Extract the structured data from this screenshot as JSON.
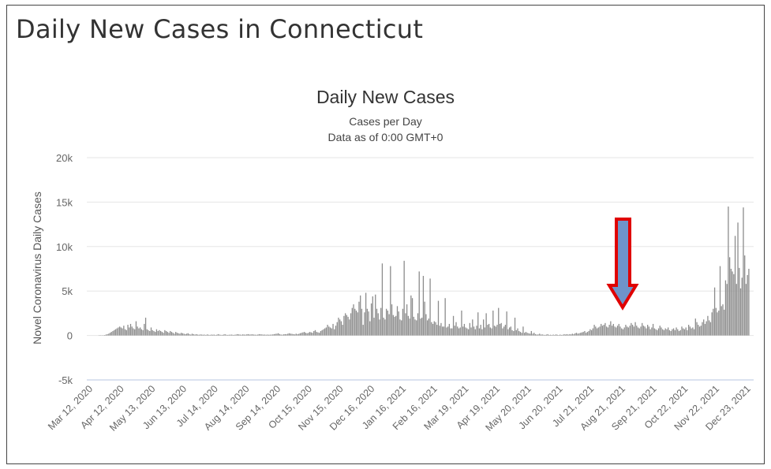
{
  "page": {
    "title": "Daily New Cases in Connecticut"
  },
  "chart_data": {
    "type": "bar",
    "title": "Daily New Cases",
    "subtitle": "Cases per Day",
    "subtitle2": "Data as of 0:00 GMT+0",
    "ylabel": "Novel Coronavirus Daily Cases",
    "xlabel": "",
    "ylim": [
      -5000,
      20000
    ],
    "y_ticks": [
      {
        "value": 20000,
        "label": "20k"
      },
      {
        "value": 15000,
        "label": "15k"
      },
      {
        "value": 10000,
        "label": "10k"
      },
      {
        "value": 5000,
        "label": "5k"
      },
      {
        "value": 0,
        "label": "0"
      },
      {
        "value": -5000,
        "label": "-5k"
      }
    ],
    "x_tick_labels": [
      "Mar 12, 2020",
      "Apr 12, 2020",
      "May 13, 2020",
      "Jun 13, 2020",
      "Jul 14, 2020",
      "Aug 14, 2020",
      "Sep 14, 2020",
      "Oct 15, 2020",
      "Nov 15, 2020",
      "Dec 16, 2020",
      "Jan 16, 2021",
      "Feb 16, 2021",
      "Mar 19, 2021",
      "Apr 19, 2021",
      "May 20, 2021",
      "Jun 20, 2021",
      "Jul 21, 2021",
      "Aug 21, 2021",
      "Sep 21, 2021",
      "Oct 22, 2021",
      "Nov 22, 2021",
      "Dec 23, 2021"
    ],
    "bar_color": "#8c8c8c",
    "grid": true,
    "legend": "none",
    "annotation": {
      "type": "down-arrow",
      "fill": "#6f93c9",
      "stroke": "#e00000",
      "near": "Sep 2021"
    },
    "start_date": "Mar 12, 2020",
    "series": [
      {
        "values": [
          0,
          0,
          5,
          20,
          50,
          100,
          150,
          200,
          300,
          400,
          500,
          600,
          700,
          800,
          900,
          1000,
          900,
          800,
          1100,
          700,
          600,
          1200,
          900,
          1300,
          1000,
          800,
          700,
          1600,
          1000,
          800,
          900,
          700,
          600,
          1300,
          2000,
          700,
          600,
          500,
          900,
          600,
          500,
          400,
          700,
          500,
          600,
          500,
          400,
          300,
          600,
          500,
          400,
          300,
          500,
          400,
          300,
          200,
          400,
          300,
          250,
          200,
          300,
          250,
          200,
          150,
          200,
          250,
          150,
          100,
          200,
          150,
          100,
          150,
          100,
          80,
          120,
          100,
          80,
          100,
          60,
          120,
          80,
          60,
          100,
          80,
          100,
          60,
          80,
          150,
          100,
          70,
          60,
          100,
          150,
          80,
          60,
          80,
          90,
          100,
          60,
          80,
          100,
          150,
          120,
          100,
          80,
          120,
          100,
          90,
          130,
          150,
          100,
          120,
          130,
          100,
          90,
          80,
          100,
          150,
          130,
          120,
          90,
          100,
          80,
          100,
          80,
          90,
          100,
          120,
          150,
          180,
          200,
          250,
          150,
          100,
          90,
          130,
          150,
          140,
          200,
          250,
          200,
          180,
          150,
          120,
          200,
          150,
          180,
          250,
          300,
          350,
          400,
          300,
          250,
          300,
          400,
          350,
          300,
          500,
          600,
          400,
          350,
          300,
          500,
          600,
          700,
          800,
          900,
          1200,
          1000,
          900,
          800,
          1300,
          700,
          1100,
          1500,
          2000,
          1800,
          1600,
          1200,
          2200,
          2500,
          2300,
          2100,
          1800,
          2500,
          3100,
          3500,
          3000,
          2800,
          2600,
          3800,
          4500,
          3000,
          1200,
          2600,
          4800,
          3000,
          2700,
          1600,
          3600,
          4400,
          2000,
          4600,
          3000,
          2500,
          1800,
          3100,
          8100,
          2000,
          1800,
          3000,
          2800,
          2400,
          7800,
          3500,
          2300,
          2100,
          2200,
          3300,
          2700,
          1800,
          1700,
          3000,
          8400,
          2500,
          3500,
          2200,
          1900,
          4500,
          4200,
          2100,
          1800,
          1700,
          2500,
          7200,
          1900,
          2000,
          6700,
          3800,
          2400,
          1700,
          1900,
          6400,
          1500,
          1300,
          1600,
          1500,
          1200,
          3900,
          1100,
          1400,
          1000,
          1000,
          4200,
          900,
          1000,
          1300,
          800,
          800,
          2200,
          1100,
          1500,
          1000,
          800,
          900,
          2800,
          1000,
          1300,
          900,
          800,
          700,
          1400,
          900,
          1800,
          1000,
          700,
          1100,
          2600,
          800,
          1200,
          700,
          1800,
          900,
          2500,
          1200,
          1300,
          900,
          800,
          2800,
          1100,
          1000,
          1200,
          3100,
          1300,
          1400,
          800,
          1000,
          1200,
          2700,
          700,
          900,
          1000,
          600,
          500,
          2000,
          600,
          800,
          500,
          400,
          300,
          1000,
          300,
          400,
          300,
          250,
          200,
          500,
          200,
          300,
          150,
          100,
          120,
          200,
          100,
          120,
          80,
          60,
          100,
          150,
          60,
          80,
          50,
          100,
          60,
          120,
          80,
          50,
          100,
          60,
          80,
          150,
          100,
          150,
          100,
          150,
          120,
          200,
          150,
          250,
          300,
          200,
          250,
          300,
          350,
          400,
          500,
          300,
          400,
          500,
          700,
          600,
          800,
          1200,
          1000,
          800,
          900,
          1000,
          1300,
          1100,
          1200,
          1400,
          1000,
          900,
          1200,
          1600,
          1100,
          1300,
          1000,
          900,
          1100,
          1300,
          1000,
          800,
          700,
          900,
          1200,
          1000,
          900,
          1100,
          1400,
          1200,
          1000,
          1500,
          1100,
          900,
          800,
          1000,
          1400,
          1100,
          1000,
          800,
          1200,
          1000,
          700,
          900,
          1300,
          800,
          700,
          600,
          800,
          1100,
          900,
          700,
          600,
          800,
          700,
          900,
          600,
          500,
          700,
          800,
          600,
          900,
          700,
          500,
          600,
          1000,
          800,
          700,
          900,
          600,
          1200,
          1000,
          800,
          900,
          700,
          1900,
          1500,
          1200,
          1000,
          1100,
          1500,
          1800,
          1300,
          1600,
          2200,
          1700,
          1500,
          2600,
          3000,
          5400,
          3100,
          2600,
          2800,
          7800,
          3300,
          3500,
          2900,
          6200,
          5800,
          14500,
          8800,
          7500,
          7200,
          6900,
          11200,
          5800,
          12700,
          7600,
          5300,
          6500,
          14400,
          9000,
          5800,
          6800,
          7500
        ]
      }
    ]
  }
}
